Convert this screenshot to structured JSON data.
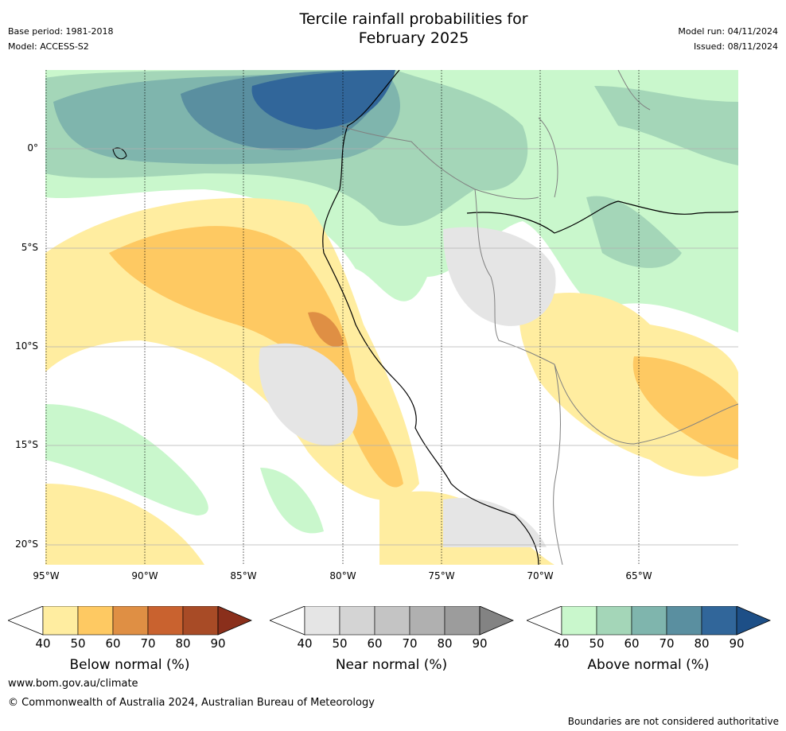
{
  "header": {
    "title_line1": "Tercile rainfall probabilities for",
    "title_line2": "February 2025",
    "base_period": "Base period: 1981-2018",
    "model": "Model: ACCESS-S2",
    "model_run": "Model run: 04/11/2024",
    "issued": "Issued: 08/11/2024"
  },
  "map": {
    "lat_labels": [
      "0°",
      "5°S",
      "10°S",
      "15°S",
      "20°S"
    ],
    "lon_labels": [
      "95°W",
      "90°W",
      "85°W",
      "80°W",
      "75°W",
      "70°W",
      "65°W"
    ]
  },
  "legends": [
    {
      "title": "Below normal (%)",
      "ticks": [
        "40",
        "50",
        "60",
        "70",
        "80",
        "90"
      ],
      "colors": [
        "#ffeda0",
        "#fec962",
        "#df8f44",
        "#c9622f",
        "#a84b26",
        "#8a2f1b"
      ]
    },
    {
      "title": "Near normal (%)",
      "ticks": [
        "40",
        "50",
        "60",
        "70",
        "80",
        "90"
      ],
      "colors": [
        "#e5e5e5",
        "#d4d4d4",
        "#c4c4c4",
        "#b0b0b0",
        "#9c9c9c",
        "#838383"
      ]
    },
    {
      "title": "Above normal (%)",
      "ticks": [
        "40",
        "50",
        "60",
        "70",
        "80",
        "90"
      ],
      "colors": [
        "#c9f7cc",
        "#a4d6b8",
        "#7fb5ad",
        "#5a8fa0",
        "#31669a",
        "#1d4f87"
      ]
    }
  ],
  "footer": {
    "url": "www.bom.gov.au/climate",
    "copyright": "© Commonwealth of Australia 2024, Australian Bureau of Meteorology",
    "note": "Boundaries are not considered authoritative"
  }
}
